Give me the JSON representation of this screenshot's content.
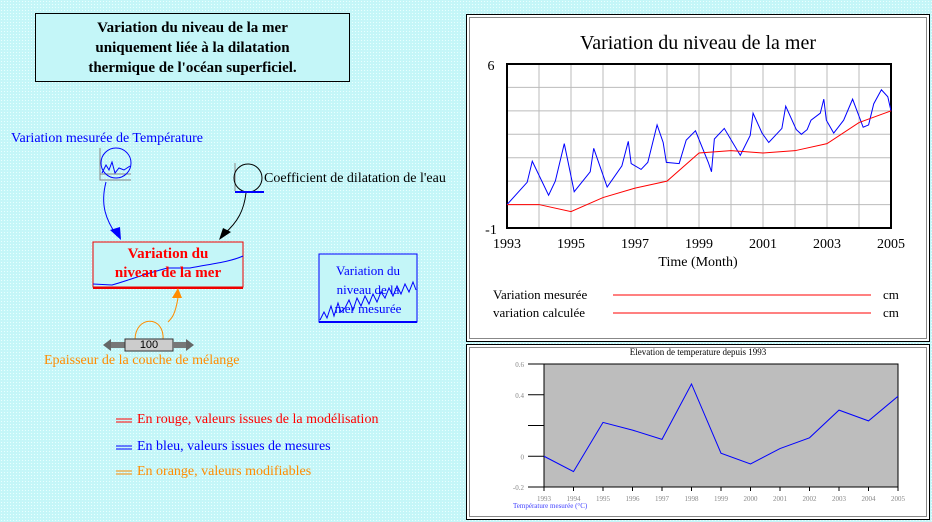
{
  "title_box": {
    "line1": "Variation du niveau de la mer",
    "line2": "uniquement liée à la dilatation",
    "line3": "thermique de l'océan superficiel."
  },
  "diagram": {
    "temp_label": "Variation mesurée de Température",
    "coef_label": "Coefficient de dilatation de l'eau",
    "main_var_line1": "Variation du",
    "main_var_line2": "niveau de la mer",
    "measured_box_line1": "Variation du",
    "measured_box_line2": "niveau de la",
    "measured_box_line3": "mer mesurée",
    "slider_value": "100",
    "slider_label": "Epaisseur de la couche de mélange",
    "colors": {
      "blue": "#0000ff",
      "red": "#ff0000",
      "orange": "#ff8c00"
    }
  },
  "legend_notes": [
    {
      "text": "En rouge, valeurs issues de la modélisation",
      "color": "#ff0000"
    },
    {
      "text": "En bleu, valeurs issues de mesures",
      "color": "#0000ff"
    },
    {
      "text": "En orange, valeurs modifiables",
      "color": "#ff8c00"
    }
  ],
  "chart_data": [
    {
      "type": "line",
      "title": "Variation du niveau de la mer",
      "xlabel": "Time (Month)",
      "ylabel": "",
      "xlim": [
        1993,
        2005
      ],
      "ylim": [
        -1,
        6
      ],
      "xticks": [
        "1993",
        "1995",
        "1997",
        "1999",
        "2001",
        "2003",
        "2005"
      ],
      "yticks": [
        "6",
        "-1"
      ],
      "grid": true,
      "series": [
        {
          "name": "Variation mesurée",
          "unit": "cm",
          "color": "#0000ff",
          "x": [
            1993,
            1993.63,
            1993.79,
            1994.3,
            1994.51,
            1994.79,
            1995.1,
            1995.6,
            1995.71,
            1996.13,
            1996.59,
            1996.79,
            1996.88,
            1997.19,
            1997.4,
            1997.69,
            1997.88,
            1997.98,
            1998.38,
            1998.6,
            1998.89,
            1999.29,
            1999.39,
            1999.48,
            1999.79,
            2000.29,
            2000.6,
            2000.69,
            2000.97,
            2001.18,
            2001.59,
            2001.71,
            2002.04,
            2002.2,
            2002.38,
            2002.5,
            2002.79,
            2002.9,
            2002.98,
            2003.21,
            2003.52,
            2003.8,
            2004.13,
            2004.3,
            2004.46,
            2004.7,
            2004.9,
            2005
          ],
          "y": [
            0,
            0.95,
            1.85,
            0.4,
            1,
            2.6,
            0.55,
            1.4,
            2.4,
            0.75,
            1.65,
            2.7,
            1.75,
            1.5,
            1.8,
            3.4,
            2.65,
            1.8,
            1.75,
            2.75,
            3.15,
            1.8,
            1.4,
            2.8,
            3.25,
            2.1,
            2.95,
            3.9,
            3.05,
            2.65,
            3.25,
            4.2,
            3.2,
            3.0,
            3.2,
            3.6,
            3.9,
            4.5,
            3.6,
            3.05,
            3.6,
            4.5,
            3.3,
            3.4,
            4.3,
            4.9,
            4.6,
            4.0
          ]
        },
        {
          "name": "variation calculée",
          "unit": "cm",
          "color": "#ff0000",
          "x": [
            1993,
            1994,
            1995,
            1996,
            1997,
            1998,
            1999,
            2000,
            2001,
            2002,
            2003,
            2004,
            2005
          ],
          "y": [
            0,
            0,
            -0.3,
            0.3,
            0.7,
            1.0,
            2.2,
            2.3,
            2.2,
            2.3,
            2.6,
            3.5,
            4.0
          ]
        }
      ],
      "legend": "bottom"
    },
    {
      "type": "line",
      "title": "Elevation de temperature depuis 1993",
      "xlabel": "",
      "ylabel": "",
      "xlim": [
        1993,
        2005
      ],
      "ylim": [
        -0.2,
        0.6
      ],
      "yticks": [
        "0.6",
        "0.4",
        "0",
        "-0.2"
      ],
      "xticks": [
        "1993",
        "1994",
        "1995",
        "1996",
        "1997",
        "1998",
        "1999",
        "2000",
        "2001",
        "2002",
        "2003",
        "2004",
        "2005"
      ],
      "series": [
        {
          "name": "Température mesurée (°C)",
          "color": "#0000ff",
          "x": [
            1993,
            1994,
            1995,
            1996,
            1997,
            1998,
            1999,
            2000,
            2001,
            2002,
            2003,
            2004,
            2005
          ],
          "y": [
            0,
            -0.1,
            0.22,
            0.17,
            0.11,
            0.47,
            0.02,
            -0.05,
            0.05,
            0.12,
            0.3,
            0.23,
            0.39
          ]
        }
      ],
      "legend": "bottom-left"
    }
  ]
}
